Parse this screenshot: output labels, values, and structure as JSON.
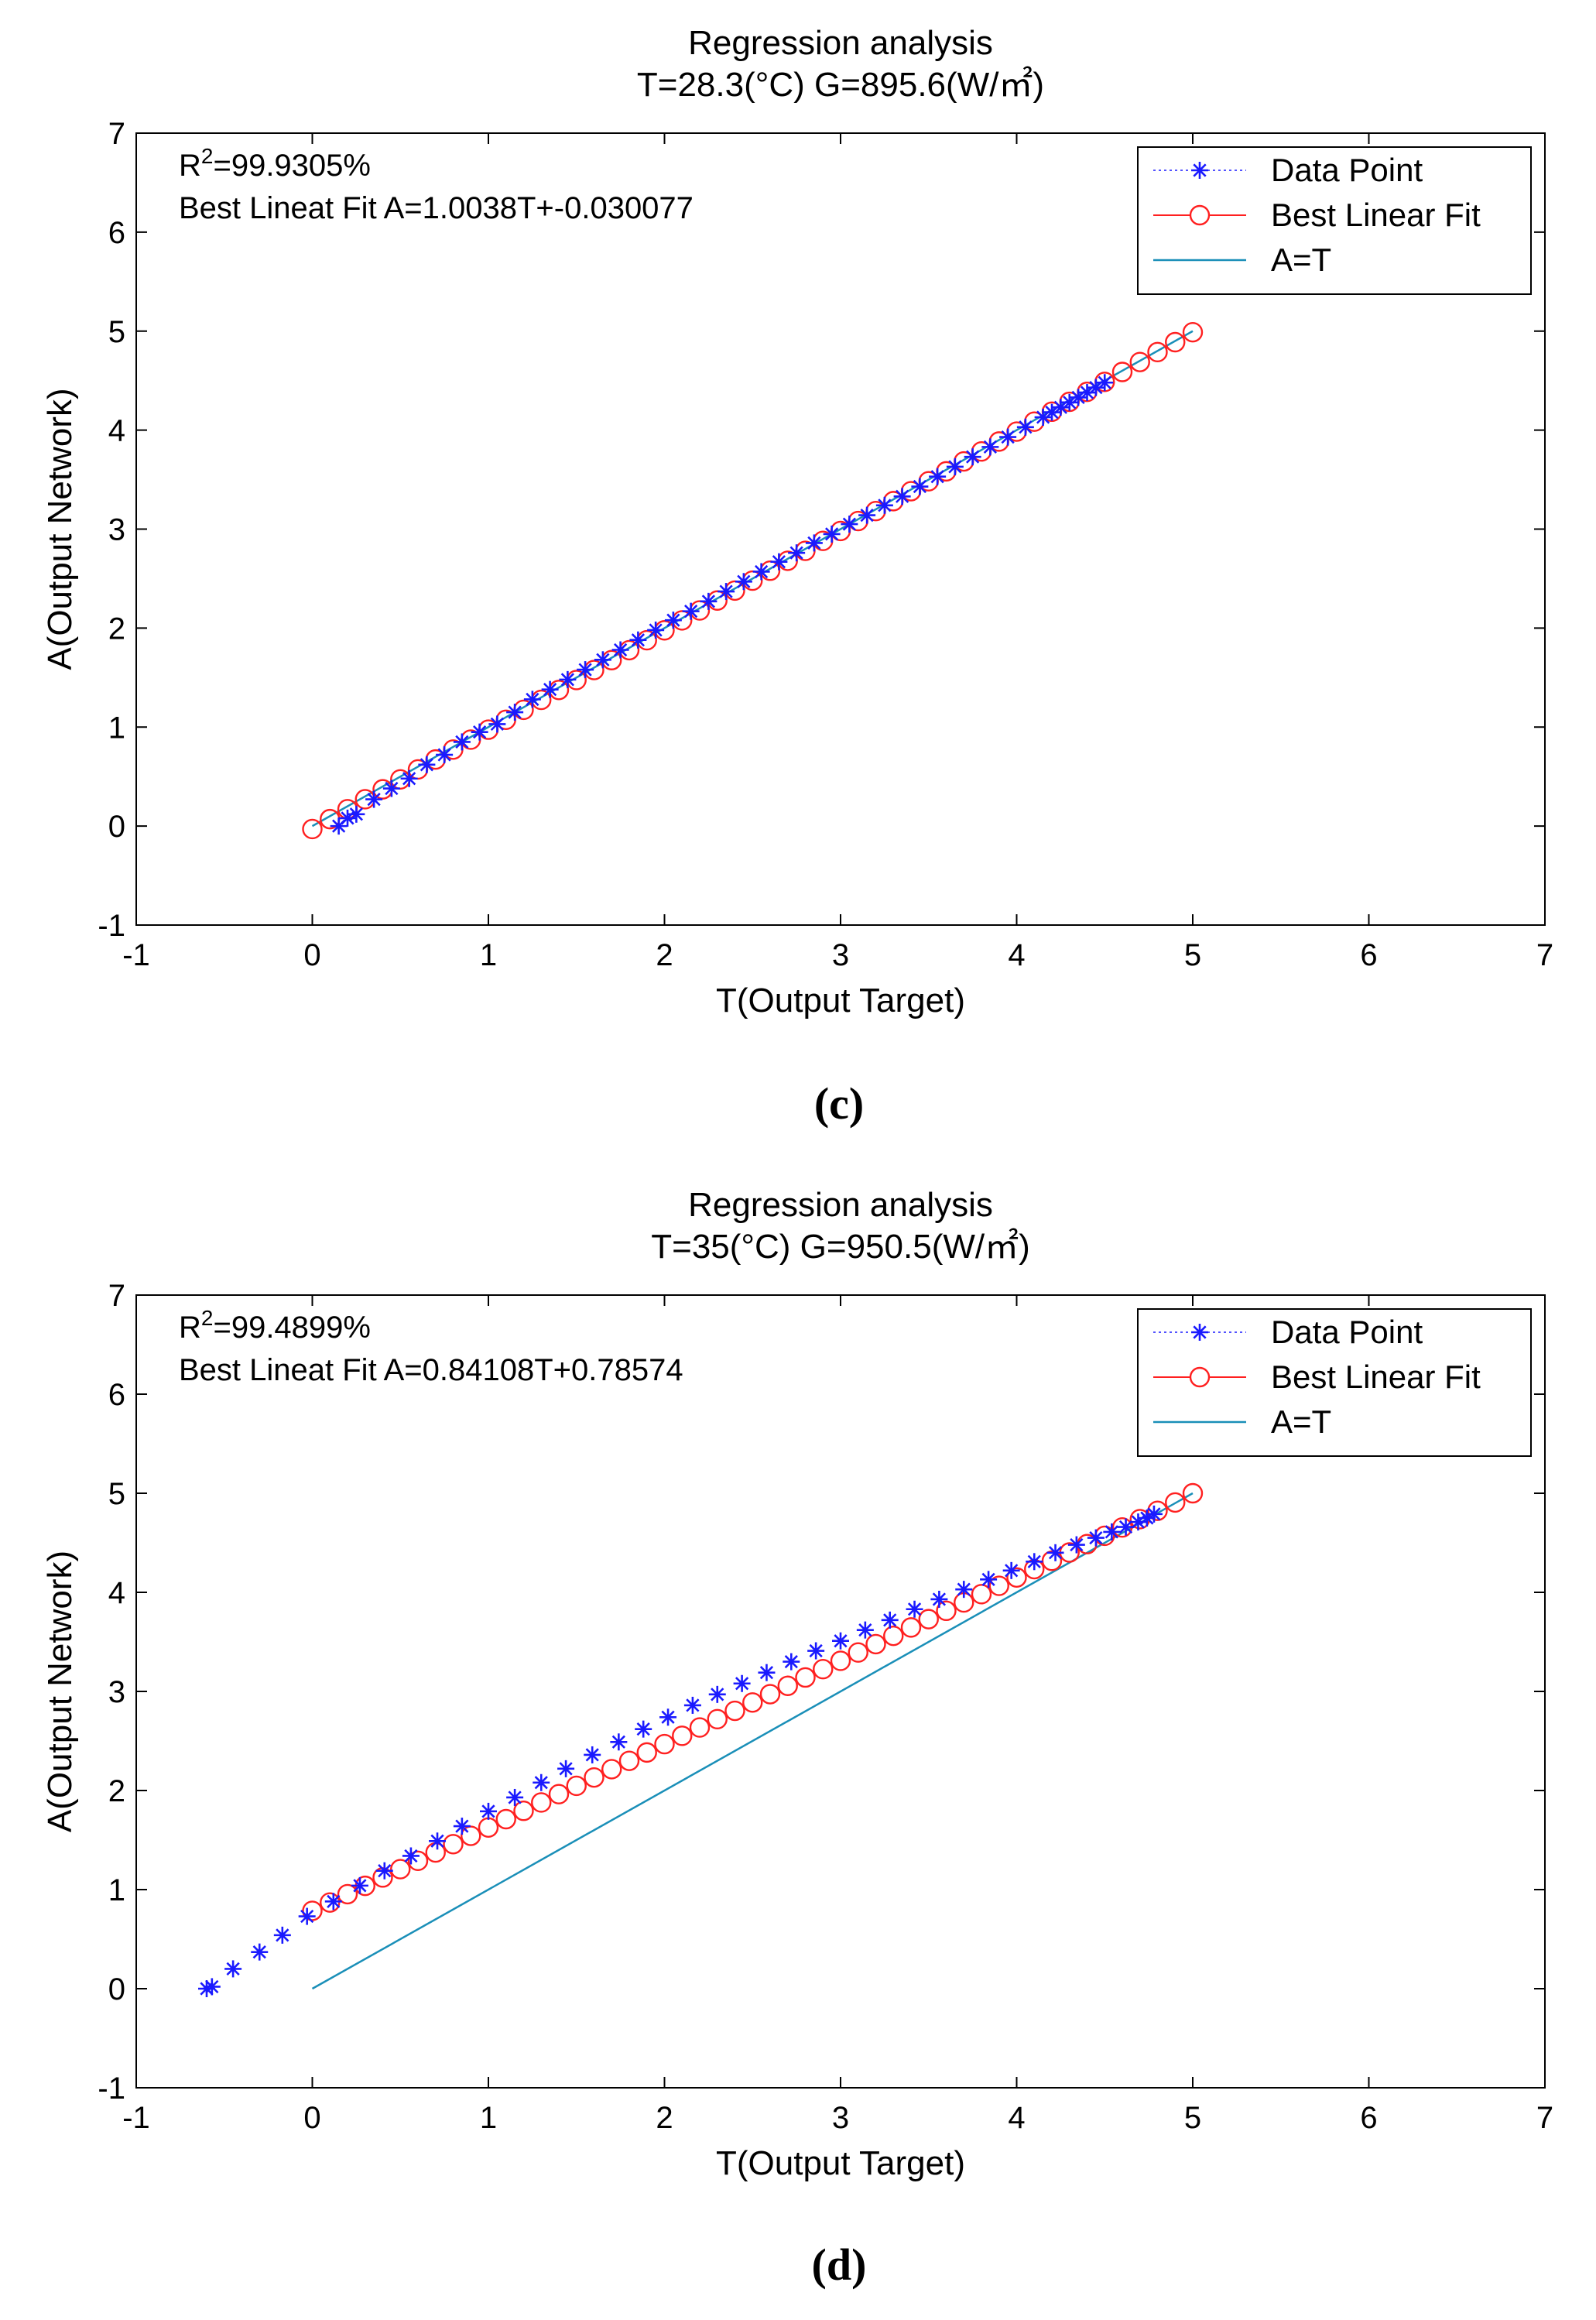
{
  "chart_data": [
    {
      "panel": "(c)",
      "type": "scatter",
      "title": "Regression analysis",
      "subtitle": "T=28.3(°C)  G=895.6(W/㎡)",
      "xlabel": "T(Output Target)",
      "ylabel": "A(Output Network)",
      "xlim": [
        -1,
        7
      ],
      "ylim": [
        -1,
        7
      ],
      "xticks": [
        -1,
        0,
        1,
        2,
        3,
        4,
        5,
        6,
        7
      ],
      "yticks": [
        -1,
        0,
        1,
        2,
        3,
        4,
        5,
        6,
        7
      ],
      "annotation": {
        "r2_prefix": "R",
        "r2_sup": "2",
        "r2_value": "=99.9305%",
        "fit_text": "Best Lineat Fit A=1.0038T+-0.030077"
      },
      "legend": {
        "position": "top-right",
        "entries": [
          "Data Point",
          "Best Linear Fit",
          "A=T"
        ]
      },
      "colors": {
        "data_point": "#1a1aff",
        "best_fit": "#ff2020",
        "identity": "#1a8fb8"
      },
      "series": [
        {
          "name": "Data Point",
          "marker": "asterisk",
          "x": [
            0.15,
            0.2,
            0.25,
            0.35,
            0.45,
            0.55,
            0.65,
            0.75,
            0.85,
            0.95,
            1.05,
            1.15,
            1.25,
            1.35,
            1.45,
            1.55,
            1.65,
            1.75,
            1.85,
            1.95,
            2.05,
            2.15,
            2.25,
            2.35,
            2.45,
            2.55,
            2.65,
            2.75,
            2.85,
            2.95,
            3.05,
            3.15,
            3.25,
            3.35,
            3.45,
            3.55,
            3.65,
            3.75,
            3.85,
            3.95,
            4.05,
            4.15,
            4.2,
            4.25,
            4.3,
            4.35,
            4.4,
            4.45,
            4.5
          ],
          "y": [
            0.0,
            0.08,
            0.12,
            0.27,
            0.38,
            0.48,
            0.62,
            0.72,
            0.85,
            0.95,
            1.03,
            1.15,
            1.28,
            1.38,
            1.48,
            1.58,
            1.68,
            1.78,
            1.88,
            1.98,
            2.08,
            2.17,
            2.27,
            2.37,
            2.47,
            2.57,
            2.67,
            2.76,
            2.86,
            2.95,
            3.05,
            3.14,
            3.24,
            3.33,
            3.43,
            3.53,
            3.63,
            3.73,
            3.83,
            3.93,
            4.03,
            4.13,
            4.18,
            4.23,
            4.28,
            4.33,
            4.38,
            4.43,
            4.48
          ]
        },
        {
          "name": "Best Linear Fit",
          "marker": "circle",
          "slope": 1.0038,
          "intercept": -0.030077,
          "x": [
            0,
            0.1,
            0.2,
            0.3,
            0.4,
            0.5,
            0.6,
            0.7,
            0.8,
            0.9,
            1.0,
            1.1,
            1.2,
            1.3,
            1.4,
            1.5,
            1.6,
            1.7,
            1.8,
            1.9,
            2.0,
            2.1,
            2.2,
            2.3,
            2.4,
            2.5,
            2.6,
            2.7,
            2.8,
            2.9,
            3.0,
            3.1,
            3.2,
            3.3,
            3.4,
            3.5,
            3.6,
            3.7,
            3.8,
            3.9,
            4.0,
            4.1,
            4.2,
            4.3,
            4.4,
            4.5,
            4.6,
            4.7,
            4.8,
            4.9,
            5.0
          ]
        },
        {
          "name": "A=T",
          "marker": "none",
          "x": [
            0,
            5
          ],
          "y": [
            0,
            5
          ]
        }
      ]
    },
    {
      "panel": "(d)",
      "type": "scatter",
      "title": "Regression analysis",
      "subtitle": "T=35(°C)  G=950.5(W/㎡)",
      "xlabel": "T(Output Target)",
      "ylabel": "A(Output Network)",
      "xlim": [
        -1,
        7
      ],
      "ylim": [
        -1,
        7
      ],
      "xticks": [
        -1,
        0,
        1,
        2,
        3,
        4,
        5,
        6,
        7
      ],
      "yticks": [
        -1,
        0,
        1,
        2,
        3,
        4,
        5,
        6,
        7
      ],
      "annotation": {
        "r2_prefix": "R",
        "r2_sup": "2",
        "r2_value": "=99.4899%",
        "fit_text": "Best Lineat Fit A=0.84108T+0.78574"
      },
      "legend": {
        "position": "top-right",
        "entries": [
          "Data Point",
          "Best Linear Fit",
          "A=T"
        ]
      },
      "colors": {
        "data_point": "#1a1aff",
        "best_fit": "#ff2020",
        "identity": "#1a8fb8"
      },
      "series": [
        {
          "name": "Data Point",
          "marker": "asterisk",
          "x": [
            -0.6,
            -0.57,
            -0.45,
            -0.3,
            -0.17,
            -0.03,
            0.12,
            0.27,
            0.41,
            0.56,
            0.71,
            0.85,
            1.0,
            1.15,
            1.3,
            1.44,
            1.59,
            1.74,
            1.88,
            2.02,
            2.16,
            2.3,
            2.44,
            2.58,
            2.72,
            2.86,
            3.0,
            3.14,
            3.28,
            3.42,
            3.56,
            3.7,
            3.84,
            3.97,
            4.1,
            4.22,
            4.34,
            4.45,
            4.54,
            4.62,
            4.69,
            4.74,
            4.78
          ],
          "y": [
            0.0,
            0.02,
            0.2,
            0.37,
            0.54,
            0.73,
            0.88,
            1.04,
            1.19,
            1.34,
            1.49,
            1.64,
            1.79,
            1.93,
            2.08,
            2.22,
            2.36,
            2.49,
            2.62,
            2.74,
            2.86,
            2.97,
            3.08,
            3.19,
            3.3,
            3.41,
            3.51,
            3.62,
            3.72,
            3.83,
            3.93,
            4.03,
            4.13,
            4.22,
            4.31,
            4.4,
            4.48,
            4.55,
            4.61,
            4.66,
            4.71,
            4.75,
            4.79
          ]
        },
        {
          "name": "Best Linear Fit",
          "marker": "circle",
          "slope": 0.84108,
          "intercept": 0.78574,
          "x": [
            0,
            0.1,
            0.2,
            0.3,
            0.4,
            0.5,
            0.6,
            0.7,
            0.8,
            0.9,
            1.0,
            1.1,
            1.2,
            1.3,
            1.4,
            1.5,
            1.6,
            1.7,
            1.8,
            1.9,
            2.0,
            2.1,
            2.2,
            2.3,
            2.4,
            2.5,
            2.6,
            2.7,
            2.8,
            2.9,
            3.0,
            3.1,
            3.2,
            3.3,
            3.4,
            3.5,
            3.6,
            3.7,
            3.8,
            3.9,
            4.0,
            4.1,
            4.2,
            4.3,
            4.4,
            4.5,
            4.6,
            4.7,
            4.8,
            4.9,
            5.0
          ],
          "fit_end_y": 5.0
        },
        {
          "name": "A=T",
          "marker": "none",
          "x": [
            0,
            5
          ],
          "y": [
            0,
            5
          ]
        }
      ]
    }
  ]
}
